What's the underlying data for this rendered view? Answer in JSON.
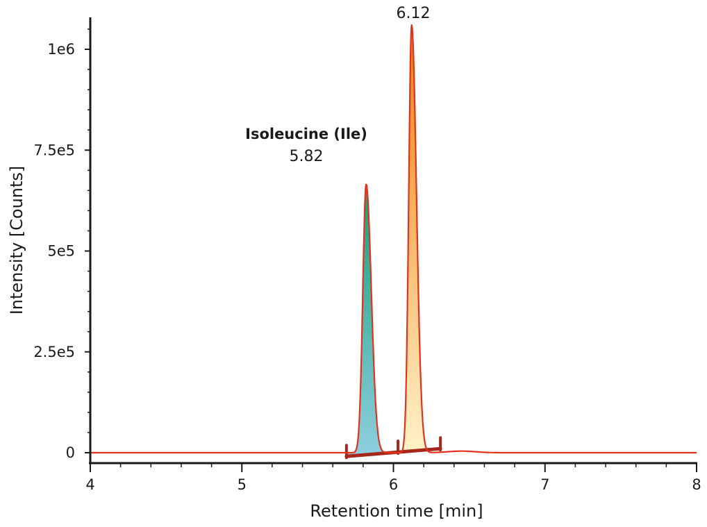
{
  "chart_data": {
    "type": "line",
    "title": "",
    "xlabel": "Retention time [min]",
    "ylabel": "Intensity [Counts]",
    "xlim": [
      4,
      8
    ],
    "ylim": [
      0,
      1060000
    ],
    "x_ticks": [
      4,
      5,
      6,
      7,
      8
    ],
    "x_tick_labels": [
      "4",
      "5",
      "6",
      "7",
      "8"
    ],
    "y_ticks": [
      0,
      250000,
      500000,
      750000,
      1000000
    ],
    "y_tick_labels": [
      "0",
      "2.5e5",
      "5e5",
      "7.5e5",
      "1e6"
    ],
    "grid": false,
    "peaks": [
      {
        "name": "Isoleucine (Ile)",
        "label": "Isoleucine (Ile)",
        "retention_time": 5.82,
        "retention_label": "5.82",
        "height": 665000,
        "sigma_left": 0.022,
        "sigma_right": 0.034,
        "integration_start": 5.69,
        "integration_end": 6.03,
        "fill_top": "#1a9e78",
        "fill_bottom": "#8ecfe0"
      },
      {
        "name": "6.12",
        "label": "",
        "retention_time": 6.12,
        "retention_label": "6.12",
        "height": 1060000,
        "sigma_left": 0.019,
        "sigma_right": 0.032,
        "integration_start": 6.03,
        "integration_end": 6.31,
        "fill_top": "#f07f10",
        "fill_bottom": "#fff2c8"
      }
    ],
    "baseline": {
      "from": 5.69,
      "to": 6.31,
      "level_start": -9000,
      "level_end": 10000
    },
    "trace_color": "#e0331c",
    "baseline_color": "#a6281a"
  }
}
